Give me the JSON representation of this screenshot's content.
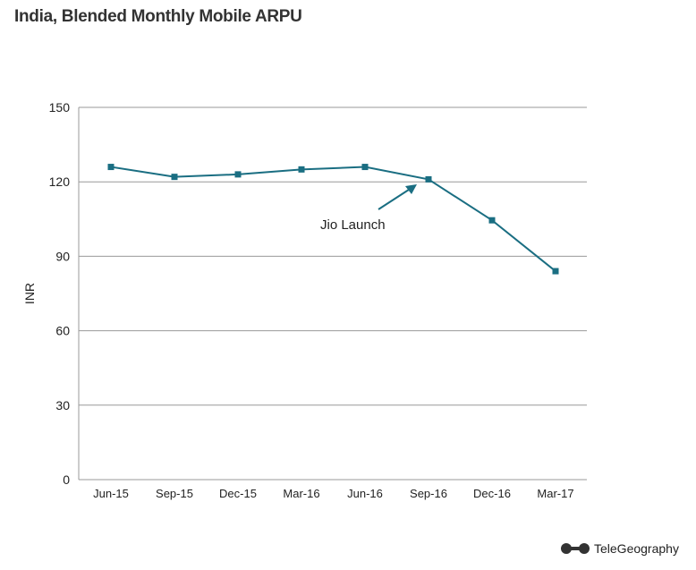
{
  "title": "India, Blended Monthly Mobile ARPU",
  "logo": "TeleGeography",
  "chart_data": {
    "type": "line",
    "title": "India, Blended Monthly Mobile ARPU",
    "ylabel": "INR",
    "xlabel": "",
    "ylim": [
      0,
      150
    ],
    "yticks": [
      0,
      30,
      60,
      90,
      120,
      150
    ],
    "grid": true,
    "categories": [
      "Jun-15",
      "Sep-15",
      "Dec-15",
      "Mar-16",
      "Jun-16",
      "Sep-16",
      "Dec-16",
      "Mar-17"
    ],
    "values": [
      126,
      122,
      123,
      125,
      126,
      121,
      104.5,
      84
    ],
    "color": "#1a6e82",
    "annotations": [
      {
        "text": "Jio Launch",
        "points_to": "Sep-16"
      }
    ]
  }
}
